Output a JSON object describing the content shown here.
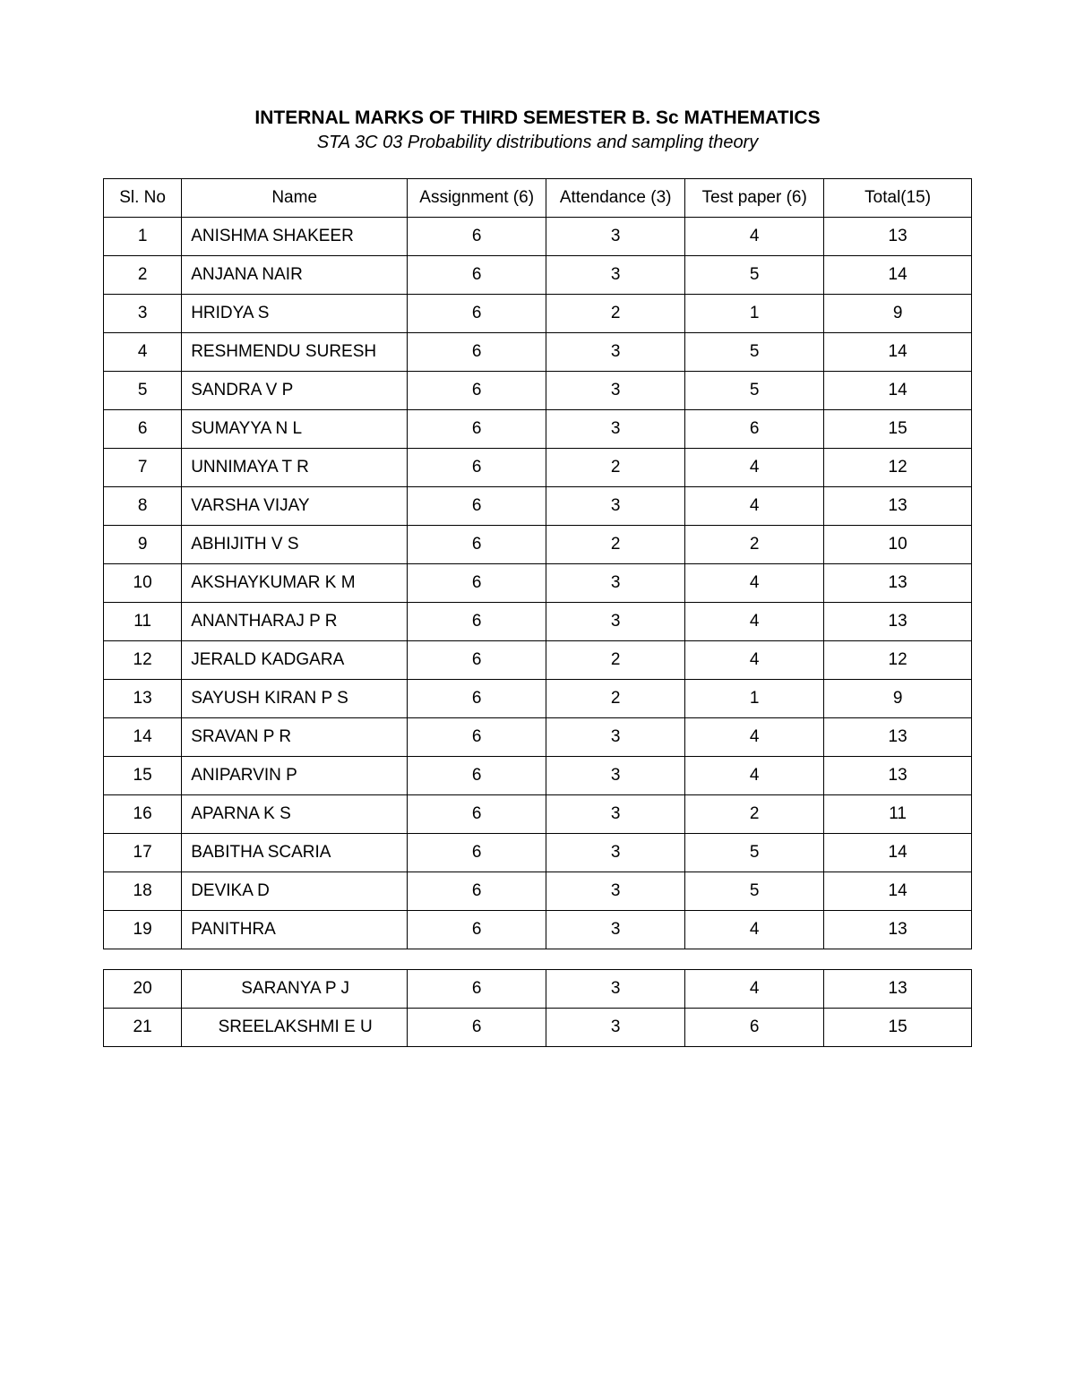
{
  "title": "INTERNAL MARKS OF THIRD SEMESTER  B. Sc MATHEMATICS",
  "subtitle": "STA 3C 03 Probability distributions and sampling theory",
  "columns": {
    "sl_no": "Sl. No",
    "name": "Name",
    "assignment": "Assignment (6)",
    "attendance": "Attendance (3)",
    "test_paper": "Test paper (6)",
    "total": "Total(15)"
  },
  "rows1": [
    {
      "no": "1",
      "name": "ANISHMA SHAKEER",
      "asg": "6",
      "att": "3",
      "test": "4",
      "tot": "13"
    },
    {
      "no": "2",
      "name": "ANJANA NAIR",
      "asg": "6",
      "att": "3",
      "test": "5",
      "tot": "14"
    },
    {
      "no": "3",
      "name": "HRIDYA S",
      "asg": "6",
      "att": "2",
      "test": "1",
      "tot": "9"
    },
    {
      "no": "4",
      "name": "RESHMENDU SURESH",
      "asg": "6",
      "att": "3",
      "test": "5",
      "tot": "14"
    },
    {
      "no": "5",
      "name": "SANDRA V P",
      "asg": "6",
      "att": "3",
      "test": "5",
      "tot": "14"
    },
    {
      "no": "6",
      "name": "SUMAYYA N L",
      "asg": "6",
      "att": "3",
      "test": "6",
      "tot": "15"
    },
    {
      "no": "7",
      "name": "UNNIMAYA T R",
      "asg": "6",
      "att": "2",
      "test": "4",
      "tot": "12"
    },
    {
      "no": "8",
      "name": "VARSHA VIJAY",
      "asg": "6",
      "att": "3",
      "test": "4",
      "tot": "13"
    },
    {
      "no": "9",
      "name": "ABHIJITH V S",
      "asg": "6",
      "att": "2",
      "test": "2",
      "tot": "10"
    },
    {
      "no": "10",
      "name": "AKSHAYKUMAR K M",
      "asg": "6",
      "att": "3",
      "test": "4",
      "tot": "13"
    },
    {
      "no": "11",
      "name": "ANANTHARAJ P R",
      "asg": "6",
      "att": "3",
      "test": "4",
      "tot": "13"
    },
    {
      "no": "12",
      "name": "JERALD KADGARA",
      "asg": "6",
      "att": "2",
      "test": "4",
      "tot": "12"
    },
    {
      "no": "13",
      "name": "SAYUSH KIRAN P S",
      "asg": "6",
      "att": "2",
      "test": "1",
      "tot": "9"
    },
    {
      "no": "14",
      "name": "SRAVAN P R",
      "asg": "6",
      "att": "3",
      "test": "4",
      "tot": "13"
    },
    {
      "no": "15",
      "name": "ANIPARVIN P",
      "asg": "6",
      "att": "3",
      "test": "4",
      "tot": "13"
    },
    {
      "no": "16",
      "name": "APARNA K S",
      "asg": "6",
      "att": "3",
      "test": "2",
      "tot": "11"
    },
    {
      "no": "17",
      "name": "BABITHA SCARIA",
      "asg": "6",
      "att": "3",
      "test": "5",
      "tot": "14"
    },
    {
      "no": "18",
      "name": "DEVIKA D",
      "asg": "6",
      "att": "3",
      "test": "5",
      "tot": "14"
    },
    {
      "no": "19",
      "name": "PANITHRA",
      "asg": "6",
      "att": "3",
      "test": "4",
      "tot": "13"
    }
  ],
  "rows2": [
    {
      "no": "20",
      "name": "SARANYA P J",
      "asg": "6",
      "att": "3",
      "test": "4",
      "tot": "13"
    },
    {
      "no": "21",
      "name": "SREELAKSHMI E U",
      "asg": "6",
      "att": "3",
      "test": "6",
      "tot": "15"
    }
  ]
}
